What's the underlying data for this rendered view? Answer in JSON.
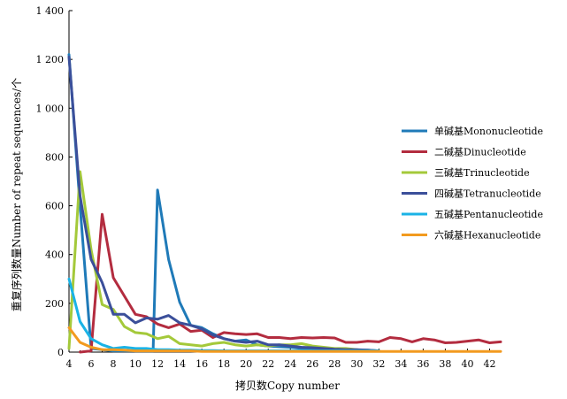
{
  "chart_data": {
    "type": "line",
    "title": "",
    "xlabel": "拷贝数Copy number",
    "ylabel": "重复序列数量Number of repeat sequences/个",
    "xlim": [
      4,
      43
    ],
    "ylim": [
      0,
      1400
    ],
    "xticks": [
      4,
      6,
      8,
      10,
      12,
      14,
      16,
      18,
      20,
      22,
      24,
      26,
      28,
      30,
      32,
      34,
      36,
      38,
      40,
      42
    ],
    "yticks": [
      0,
      200,
      400,
      600,
      800,
      1000,
      1200,
      1400
    ],
    "ytick_labels": [
      "0",
      "200",
      "400",
      "600",
      "800",
      "1 000",
      "1 200",
      "1 400"
    ],
    "grid": false,
    "legend_position": "right",
    "series": [
      {
        "name": "单碱基Mononucleotide",
        "color": "#1f7ab8",
        "x": [
          4,
          5,
          6,
          7,
          8,
          9,
          10,
          11,
          11.6,
          12,
          13,
          14,
          15,
          16,
          17,
          18,
          19,
          20,
          21,
          22,
          23,
          24,
          25,
          26,
          27,
          28,
          29,
          30,
          31,
          32
        ],
        "y": [
          1220,
          600,
          15,
          10,
          5,
          5,
          5,
          5,
          5,
          665,
          380,
          205,
          110,
          100,
          75,
          55,
          45,
          50,
          30,
          25,
          22,
          20,
          15,
          15,
          12,
          10,
          10,
          8,
          8,
          5
        ]
      },
      {
        "name": "二碱基Dinucleotide",
        "color": "#b32c3f",
        "x": [
          5,
          6,
          7,
          8,
          9,
          10,
          11,
          12,
          13,
          14,
          15,
          16,
          17,
          18,
          19,
          20,
          21,
          22,
          23,
          24,
          25,
          26,
          27,
          28,
          29,
          30,
          31,
          32,
          33,
          34,
          35,
          36,
          37,
          38,
          39,
          40,
          41,
          42,
          43
        ],
        "y": [
          0,
          5,
          565,
          305,
          230,
          155,
          145,
          115,
          100,
          115,
          85,
          90,
          60,
          80,
          75,
          72,
          75,
          60,
          60,
          55,
          60,
          58,
          60,
          58,
          40,
          40,
          45,
          42,
          60,
          55,
          42,
          55,
          50,
          38,
          40,
          45,
          50,
          38,
          42
        ]
      },
      {
        "name": "三碱基Trinucleotide",
        "color": "#a4c93a",
        "x": [
          4,
          5,
          6,
          7,
          8,
          9,
          10,
          11,
          12,
          13,
          14,
          15,
          16,
          17,
          18,
          19,
          20,
          21,
          22,
          23,
          24,
          25,
          26,
          27,
          28,
          29,
          30,
          31,
          32
        ],
        "y": [
          15,
          740,
          420,
          195,
          175,
          105,
          80,
          75,
          55,
          65,
          35,
          30,
          25,
          35,
          40,
          30,
          25,
          30,
          25,
          30,
          30,
          35,
          25,
          20,
          15,
          15,
          10,
          5,
          5
        ]
      },
      {
        "name": "四碱基Tetranucleotide",
        "color": "#3b4f9a",
        "x": [
          4,
          5,
          6,
          7,
          8,
          9,
          10,
          11,
          12,
          13,
          14,
          15,
          16,
          17,
          18,
          19,
          20,
          21,
          22,
          23,
          24,
          25,
          26,
          27,
          28,
          29,
          30,
          31,
          32
        ],
        "y": [
          1210,
          640,
          380,
          285,
          155,
          155,
          120,
          140,
          135,
          150,
          120,
          110,
          95,
          70,
          55,
          45,
          40,
          45,
          30,
          30,
          25,
          20,
          18,
          15,
          12,
          10,
          10,
          8,
          5
        ]
      },
      {
        "name": "五碱基Pentanucleotide",
        "color": "#1ab3e6",
        "x": [
          4,
          5,
          6,
          7,
          8,
          9,
          10,
          11,
          12,
          13,
          14,
          15,
          16,
          17,
          18,
          19,
          20,
          21,
          22,
          23,
          24,
          25,
          26,
          27,
          28,
          29,
          30,
          31,
          32
        ],
        "y": [
          300,
          125,
          55,
          30,
          15,
          20,
          15,
          15,
          10,
          10,
          8,
          8,
          6,
          6,
          5,
          5,
          5,
          5,
          5,
          5,
          5,
          5,
          5,
          5,
          5,
          5,
          5,
          5,
          5
        ]
      },
      {
        "name": "六碱基Hexanucleotide",
        "color": "#f29a1f",
        "x": [
          4,
          5,
          6,
          7,
          8,
          9,
          10,
          11,
          12,
          13,
          14,
          15,
          16,
          17,
          18,
          19,
          20,
          21,
          22,
          23,
          24,
          25,
          26,
          27,
          28,
          29,
          30,
          31,
          32,
          33,
          34,
          35,
          36,
          37,
          38,
          39,
          40,
          41,
          42,
          43
        ],
        "y": [
          100,
          40,
          20,
          10,
          10,
          8,
          5,
          5,
          5,
          5,
          5,
          5,
          3,
          3,
          3,
          3,
          3,
          3,
          3,
          3,
          3,
          3,
          3,
          3,
          3,
          3,
          3,
          3,
          3,
          3,
          3,
          3,
          3,
          3,
          3,
          3,
          3,
          3,
          3,
          3
        ]
      }
    ]
  }
}
